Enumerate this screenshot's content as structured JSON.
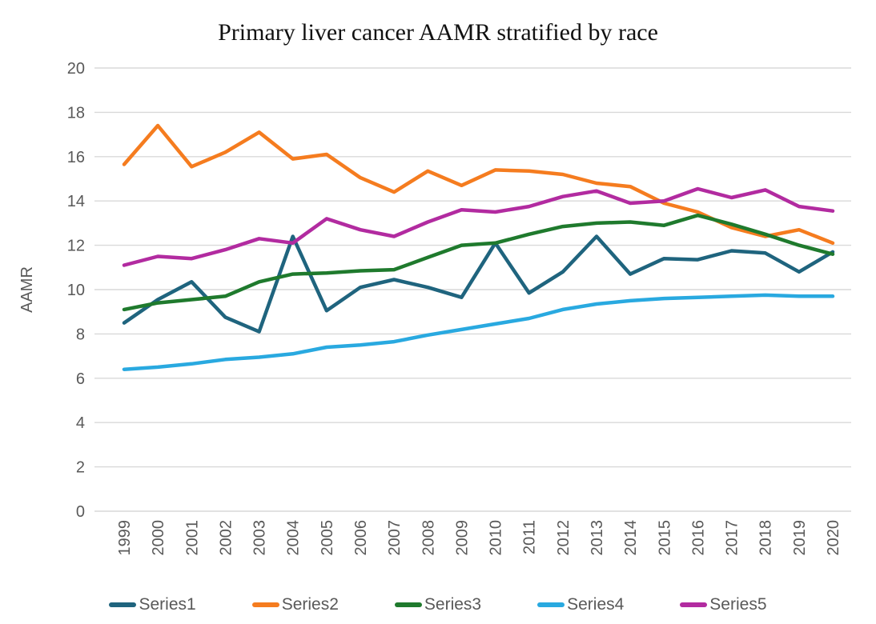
{
  "page": {
    "background": "#ffffff"
  },
  "chart_data": {
    "type": "line",
    "title": "Primary liver cancer AAMR stratified by race",
    "xlabel": "",
    "ylabel": "AAMR",
    "ylim": [
      0,
      20
    ],
    "ytick_step": 2,
    "grid": "horizontal-only",
    "legend_position": "bottom",
    "x": [
      1999,
      2000,
      2001,
      2002,
      2003,
      2004,
      2005,
      2006,
      2007,
      2008,
      2009,
      2010,
      2011,
      2012,
      2013,
      2014,
      2015,
      2016,
      2017,
      2018,
      2019,
      2020
    ],
    "series": [
      {
        "name": "Series1",
        "color": "#1F647E",
        "values": [
          8.5,
          9.55,
          10.35,
          8.75,
          8.1,
          12.4,
          9.05,
          10.1,
          10.45,
          10.1,
          9.65,
          12.1,
          9.85,
          10.8,
          12.4,
          10.7,
          11.4,
          11.35,
          11.75,
          11.65,
          10.8,
          11.7
        ]
      },
      {
        "name": "Series2",
        "color": "#F57C1F",
        "values": [
          15.65,
          17.4,
          15.55,
          16.2,
          17.1,
          15.9,
          16.1,
          15.05,
          14.4,
          15.35,
          14.7,
          15.4,
          15.35,
          15.2,
          14.8,
          14.65,
          13.9,
          13.5,
          12.8,
          12.4,
          12.7,
          12.1
        ]
      },
      {
        "name": "Series3",
        "color": "#1F7A2D",
        "values": [
          9.1,
          9.4,
          9.55,
          9.7,
          10.35,
          10.7,
          10.75,
          10.85,
          10.9,
          11.45,
          12.0,
          12.1,
          12.5,
          12.85,
          13.0,
          13.05,
          12.9,
          13.35,
          12.95,
          12.5,
          12.0,
          11.6
        ]
      },
      {
        "name": "Series4",
        "color": "#29A9E0",
        "values": [
          6.4,
          6.5,
          6.65,
          6.85,
          6.95,
          7.1,
          7.4,
          7.5,
          7.65,
          7.95,
          8.2,
          8.45,
          8.7,
          9.1,
          9.35,
          9.5,
          9.6,
          9.65,
          9.7,
          9.75,
          9.7,
          9.7
        ]
      },
      {
        "name": "Series5",
        "color": "#B22BA0",
        "values": [
          11.1,
          11.5,
          11.4,
          11.8,
          12.3,
          12.1,
          13.2,
          12.7,
          12.4,
          13.05,
          13.6,
          13.5,
          13.75,
          14.2,
          14.45,
          13.9,
          14.0,
          14.55,
          14.15,
          14.5,
          13.75,
          13.55
        ]
      }
    ],
    "styles": {
      "gridline_color": "#D9D9D9",
      "axis_text_color": "#595959",
      "title_color": "#111111",
      "line_width": 4.5
    }
  }
}
